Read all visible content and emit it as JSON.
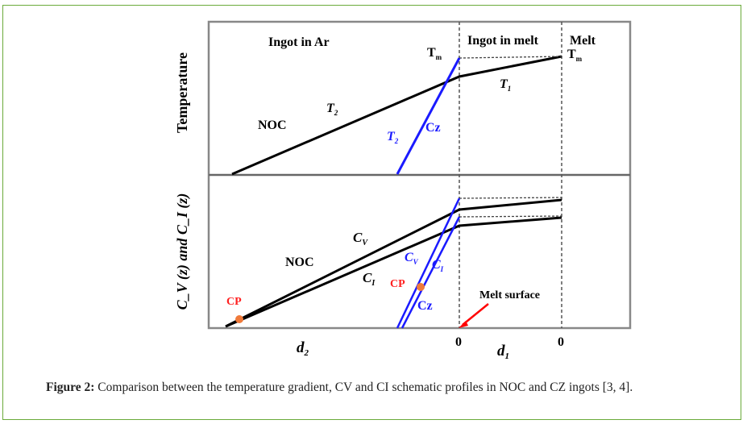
{
  "figure": {
    "regions": {
      "ingot_in_ar": "Ingot in Ar",
      "ingot_in_melt": "Ingot in melt",
      "melt": "Melt"
    },
    "top_panel": {
      "ylabel": "Temperature",
      "tm_left": "T",
      "tm_right": "T",
      "tm_sub": "m",
      "t1": "T",
      "t1_sub": "1",
      "t2": "T",
      "t2_sub": "2",
      "noc": "NOC",
      "cz_t2": "T",
      "cz_t2_sub": "2",
      "cz": "Cz"
    },
    "bottom_panel": {
      "ylabel": "C_V (z) and C_I (z)",
      "cv": "C",
      "cv_sub": "V",
      "ci": "C",
      "ci_sub": "I",
      "noc": "NOC",
      "cz_cv": "C",
      "cz_cv_sub": "V",
      "cz_ci": "C",
      "cz_ci_sub": "I",
      "cp1": "CP",
      "cp2": "CP",
      "cz": "Cz",
      "melt_surface": "Melt surface"
    },
    "xaxis": {
      "d2": "d",
      "d2_sub": "2",
      "zero1": "0",
      "d1": "d",
      "d1_sub": "1",
      "zero2": "0"
    },
    "colors": {
      "noc": "#000000",
      "cz": "#1a1aff",
      "cp": "#f07a3a",
      "cp_label": "#ff2020",
      "arrow": "#ff0000",
      "frame": "#6aaa3a"
    }
  },
  "caption": {
    "label": "Figure 2:",
    "text": " Comparison between the temperature gradient, CV and CI schematic profiles in NOC and CZ ingots [3, 4]."
  }
}
